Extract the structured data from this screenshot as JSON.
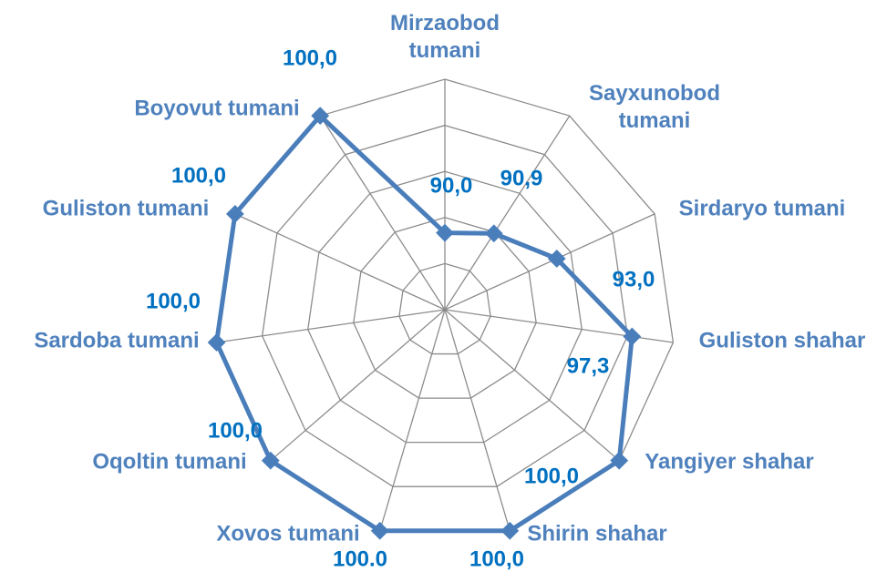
{
  "chart_data": {
    "type": "radar",
    "categories": [
      "Mirzaobod tumani",
      "Sayxunobod tumani",
      "Sirdaryo tumani",
      "Guliston shahar",
      "Yangiyer shahar",
      "Shirin shahar",
      "Xovos tumani",
      "Oqoltin tumani",
      "Sardoba tumani",
      "Guliston tumani",
      "Boyovut tumani"
    ],
    "values": [
      90.0,
      90.9,
      93.0,
      97.3,
      100,
      100,
      100,
      100,
      100,
      100,
      100
    ],
    "value_labels": [
      "90,0",
      "90,9",
      "93,0",
      "97,3",
      "100,0",
      "100,0",
      "100.0",
      "100,0",
      "100,0",
      "100,0",
      "100,0"
    ],
    "color": "#4a7ebb",
    "ylim": [
      85,
      100
    ],
    "yticks": [
      85,
      88,
      91,
      94,
      97,
      100
    ],
    "grid": true
  }
}
